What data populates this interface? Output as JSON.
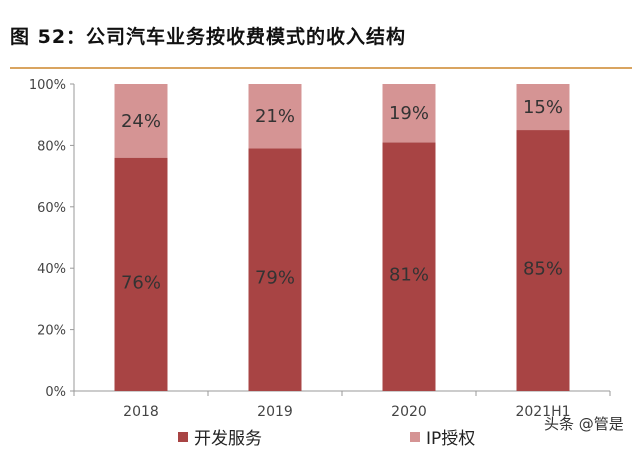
{
  "title": "图 52：公司汽车业务按收费模式的收入结构",
  "watermark": "头条 @管是",
  "chart_data": {
    "type": "bar",
    "stacked": true,
    "categories": [
      "2018",
      "2019",
      "2020",
      "2021H1"
    ],
    "series": [
      {
        "name": "开发服务",
        "values": [
          76,
          79,
          81,
          85
        ],
        "labels": [
          "76%",
          "79%",
          "81%",
          "85%"
        ],
        "color": "#a84444"
      },
      {
        "name": "IP授权",
        "values": [
          24,
          21,
          19,
          15
        ],
        "labels": [
          "24%",
          "21%",
          "19%",
          "15%"
        ],
        "color": "#d59494"
      }
    ],
    "yticks": [
      "0%",
      "20%",
      "40%",
      "60%",
      "80%",
      "100%"
    ],
    "ylim": [
      0,
      100
    ],
    "grid": false,
    "legend": "bottom"
  }
}
